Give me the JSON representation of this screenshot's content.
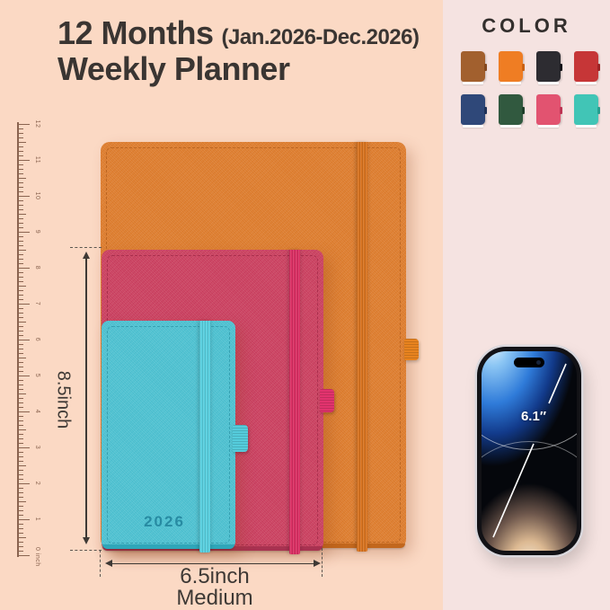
{
  "header": {
    "title": "12 Months",
    "date_range": "(Jan.2026-Dec.2026)",
    "subtitle": "Weekly Planner"
  },
  "color_panel": {
    "heading": "COLOR",
    "swatches": [
      {
        "name": "brown",
        "hex": "#a2602e",
        "band": "#84481f"
      },
      {
        "name": "orange",
        "hex": "#ef7d23",
        "band": "#c96114"
      },
      {
        "name": "black",
        "hex": "#2d2c31",
        "band": "#141318"
      },
      {
        "name": "red",
        "hex": "#c63637",
        "band": "#9e2426"
      },
      {
        "name": "navy",
        "hex": "#2f4879",
        "band": "#1f3258"
      },
      {
        "name": "green",
        "hex": "#31593f",
        "band": "#1f3f2b"
      },
      {
        "name": "rose",
        "hex": "#e25370",
        "band": "#bd3453"
      },
      {
        "name": "teal",
        "hex": "#41c5b6",
        "band": "#279e8f"
      }
    ]
  },
  "planners": [
    {
      "id": "large",
      "name": "orange-large-planner",
      "cover": "#e07e2e",
      "band": "#d8731f",
      "edge": "#c2671d",
      "loop": "#e8831f",
      "stitch": "rgba(150,70,10,0.45)"
    },
    {
      "id": "medium",
      "name": "pink-medium-planner",
      "cover": "#cd4161",
      "band": "#da2f63",
      "edge": "#a83250",
      "loop": "#e2336e",
      "stitch": "rgba(130,20,50,0.45)"
    },
    {
      "id": "small",
      "name": "teal-small-planner",
      "cover": "#4ec3d3",
      "band": "#58cfdf",
      "edge": "#2fa6b9",
      "loop": "#55ccdc",
      "stitch": "rgba(10,110,130,0.4)",
      "year": "2026",
      "year_color": "#20829b"
    }
  ],
  "measurements": {
    "height": "8.5inch",
    "width": "6.5inch",
    "size": "Medium"
  },
  "ruler": {
    "labels": [
      "12",
      "11",
      "10",
      "9",
      "8",
      "7",
      "6",
      "5",
      "4",
      "3",
      "2",
      "1",
      "0 inch"
    ]
  },
  "phone": {
    "screen_size_label": "6.1″"
  },
  "palette": {
    "bg_left": "#fbd9c4",
    "bg_right": "#f5e3e1",
    "text": "#3a3532",
    "ruler": "#8a6450"
  }
}
